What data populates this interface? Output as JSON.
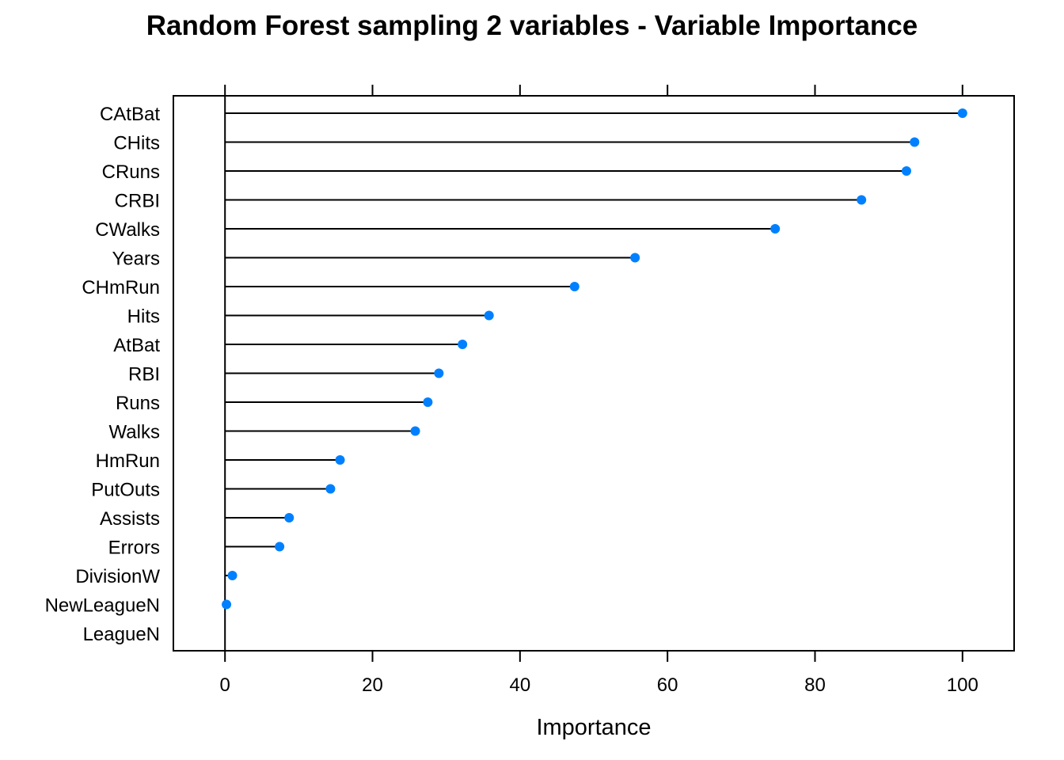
{
  "chart_data": {
    "type": "dotplot",
    "title": "Random Forest sampling 2 variables - Variable Importance",
    "xlabel": "Importance",
    "ylabel": "",
    "xlim": [
      -7,
      107
    ],
    "xticks": [
      "0",
      "20",
      "40",
      "60",
      "80",
      "100"
    ],
    "grid": false,
    "categories": [
      "CAtBat",
      "CHits",
      "CRuns",
      "CRBI",
      "CWalks",
      "Years",
      "CHmRun",
      "Hits",
      "AtBat",
      "RBI",
      "Runs",
      "Walks",
      "HmRun",
      "PutOuts",
      "Assists",
      "Errors",
      "DivisionW",
      "NewLeagueN",
      "LeagueN"
    ],
    "values": [
      100,
      93.5,
      92.4,
      86.3,
      74.6,
      55.6,
      47.4,
      35.8,
      32.2,
      29.0,
      27.5,
      25.8,
      15.6,
      14.3,
      8.7,
      7.4,
      1.0,
      0.2,
      0
    ],
    "marker_color": "#0080ff",
    "line_color": "#000000"
  }
}
